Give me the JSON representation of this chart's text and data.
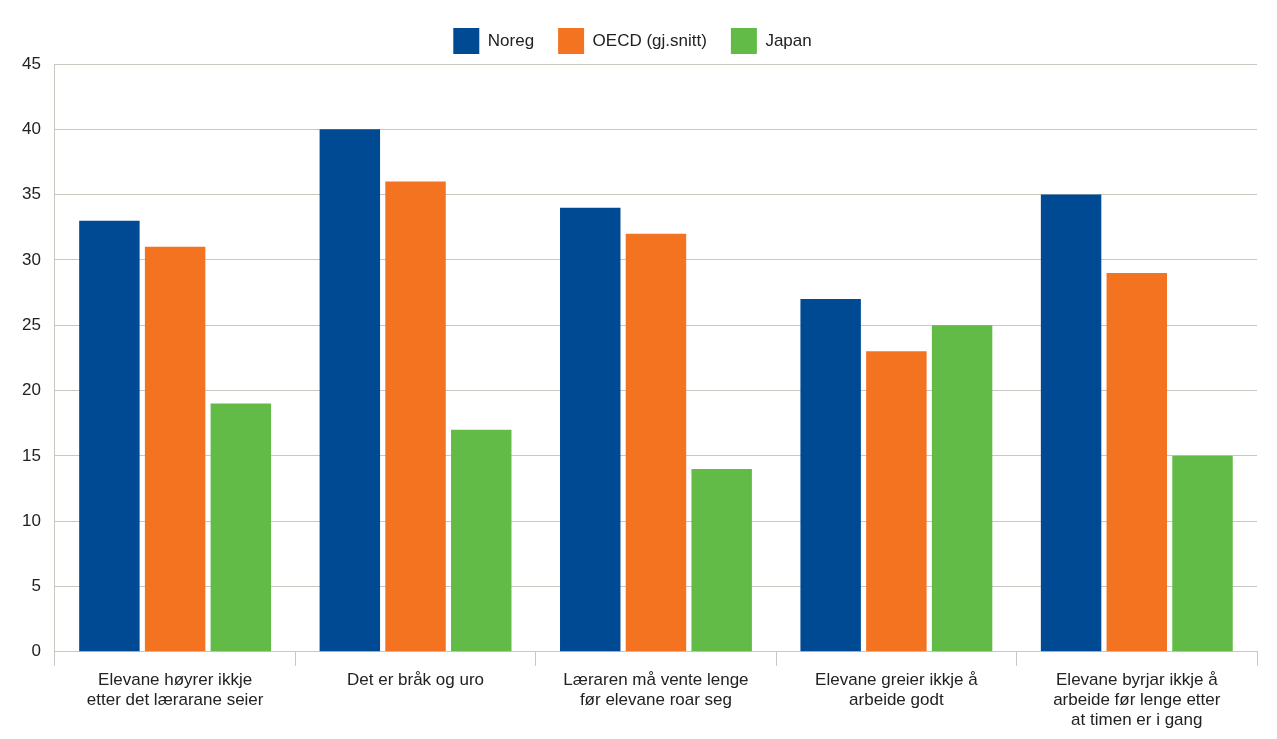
{
  "chart_data": {
    "type": "bar",
    "categories": [
      "Elevane høyrer ikkje etter det lærarane seier",
      "Det er bråk og uro",
      "Læraren må vente lenge før elevane roar seg",
      "Elevane greier ikkje å arbeide godt",
      "Elevane byrjar ikkje å arbeide før lenge etter at timen er i gang"
    ],
    "series": [
      {
        "name": "Noreg",
        "color": "#004a93",
        "values": [
          33,
          40,
          34,
          27,
          35
        ]
      },
      {
        "name": "OECD (gj.snitt)",
        "color": "#f47321",
        "values": [
          31,
          36,
          32,
          23,
          29
        ]
      },
      {
        "name": "Japan",
        "color": "#62bb46",
        "values": [
          19,
          17,
          14,
          25,
          15
        ]
      }
    ],
    "ylim": [
      0,
      45
    ],
    "yticks": [
      0,
      5,
      10,
      15,
      20,
      25,
      30,
      35,
      40,
      45
    ],
    "grid": "y",
    "legend": "top"
  }
}
